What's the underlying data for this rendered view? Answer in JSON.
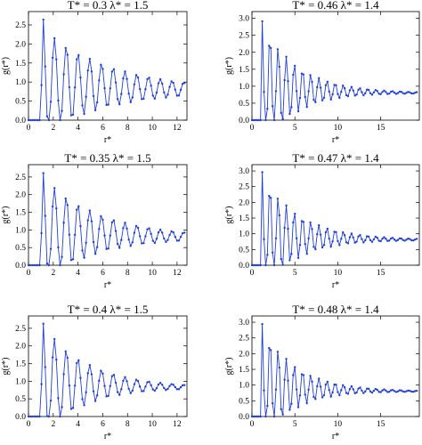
{
  "chart_data": [
    {
      "type": "line",
      "title": "T* = 0.3 λ* = 1.5",
      "xlabel": "r*",
      "ylabel": "g(r*)",
      "xlim": [
        0,
        12.8
      ],
      "ylim": [
        0,
        2.85
      ],
      "xticks": [
        0,
        2,
        4,
        6,
        8,
        10,
        12
      ],
      "yticks": [
        0.0,
        0.5,
        1.0,
        1.5,
        2.0,
        2.5
      ],
      "params": {
        "peak": 2.75,
        "core": 1.0,
        "dr": 0.15,
        "rmax": 12.6,
        "period": 0.95,
        "decay": 5.5,
        "amp": 1.4,
        "tail": 0.75
      },
      "series": [
        {
          "name": "",
          "color": "#1f3fd8"
        }
      ]
    },
    {
      "type": "line",
      "title": "T* = 0.46 λ* = 1.4",
      "xlabel": "r*",
      "ylabel": "g(r*)",
      "xlim": [
        0,
        19.5
      ],
      "ylim": [
        0,
        3.2
      ],
      "xticks": [
        0,
        5,
        10,
        15
      ],
      "yticks": [
        0.0,
        0.5,
        1.0,
        1.5,
        2.0,
        2.5,
        3.0
      ],
      "params": {
        "peak": 3.05,
        "core": 1.0,
        "dr": 0.2,
        "rmax": 19.3,
        "period": 0.95,
        "decay": 4.0,
        "amp": 1.9,
        "tail": 0.78
      },
      "series": [
        {
          "name": "",
          "color": "#1f3fd8"
        }
      ]
    },
    {
      "type": "line",
      "title": "T* = 0.35 λ* = 1.5",
      "xlabel": "r*",
      "ylabel": "g(r*)",
      "xlim": [
        0,
        12.8
      ],
      "ylim": [
        0,
        2.85
      ],
      "xticks": [
        0,
        2,
        4,
        6,
        8,
        10,
        12
      ],
      "yticks": [
        0.0,
        0.5,
        1.0,
        1.5,
        2.0,
        2.5
      ],
      "params": {
        "peak": 2.72,
        "core": 1.0,
        "dr": 0.15,
        "rmax": 12.6,
        "period": 0.95,
        "decay": 4.5,
        "amp": 1.5,
        "tail": 0.75
      },
      "series": [
        {
          "name": "",
          "color": "#1f3fd8"
        }
      ]
    },
    {
      "type": "line",
      "title": "T* = 0.47 λ* = 1.4",
      "xlabel": "r*",
      "ylabel": "g(r*)",
      "xlim": [
        0,
        19.5
      ],
      "ylim": [
        0,
        3.2
      ],
      "xticks": [
        0,
        5,
        10,
        15
      ],
      "yticks": [
        0.0,
        0.5,
        1.0,
        1.5,
        2.0,
        2.5,
        3.0
      ],
      "params": {
        "peak": 3.1,
        "core": 1.0,
        "dr": 0.2,
        "rmax": 19.3,
        "period": 0.95,
        "decay": 4.2,
        "amp": 1.9,
        "tail": 0.79
      },
      "series": [
        {
          "name": "",
          "color": "#1f3fd8"
        }
      ]
    },
    {
      "type": "line",
      "title": "T* = 0.4 λ* = 1.5",
      "xlabel": "r*",
      "ylabel": "g(r*)",
      "xlim": [
        0,
        12.8
      ],
      "ylim": [
        0,
        2.85
      ],
      "xticks": [
        0,
        2,
        4,
        6,
        8,
        10,
        12
      ],
      "yticks": [
        0.0,
        0.5,
        1.0,
        1.5,
        2.0,
        2.5
      ],
      "params": {
        "peak": 2.75,
        "core": 1.0,
        "dr": 0.15,
        "rmax": 12.6,
        "period": 0.95,
        "decay": 3.5,
        "amp": 1.6,
        "tail": 0.78
      },
      "series": [
        {
          "name": "",
          "color": "#1f3fd8"
        }
      ]
    },
    {
      "type": "line",
      "title": "T* = 0.48 λ* = 1.4",
      "xlabel": "r*",
      "ylabel": "g(r*)",
      "xlim": [
        0,
        19.5
      ],
      "ylim": [
        0,
        3.2
      ],
      "xticks": [
        0,
        5,
        10,
        15
      ],
      "yticks": [
        0.0,
        0.5,
        1.0,
        1.5,
        2.0,
        2.5,
        3.0
      ],
      "params": {
        "peak": 3.08,
        "core": 1.0,
        "dr": 0.2,
        "rmax": 19.3,
        "period": 0.95,
        "decay": 3.8,
        "amp": 1.9,
        "tail": 0.78
      },
      "series": [
        {
          "name": "",
          "color": "#1f3fd8"
        }
      ]
    }
  ]
}
